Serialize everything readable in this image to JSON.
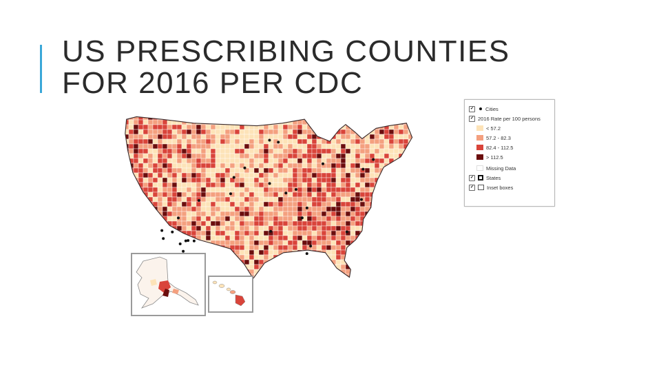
{
  "slide": {
    "title_line1": "US PRESCRIBING COUNTIES",
    "title_line2": "FOR 2016 PER CDC",
    "accent_color": "#3aa7d8"
  },
  "map": {
    "color_scale": [
      "#fde3b8",
      "#f4a07f",
      "#d9443a",
      "#6b0d0d"
    ],
    "insets": [
      "Alaska",
      "Hawaii"
    ]
  },
  "legend": {
    "cities_label": "Cities",
    "rate_label": "2016 Rate per 100 persons",
    "classes": [
      {
        "label": "< 57.2",
        "color": "#fde3b8"
      },
      {
        "label": "57.2 - 82.3",
        "color": "#f4a07f"
      },
      {
        "label": "82.4 - 112.5",
        "color": "#d9443a"
      },
      {
        "label": "> 112.5",
        "color": "#6b0d0d"
      }
    ],
    "missing_label": "Missing Data",
    "states_label": "States",
    "insets_label": "Inset boxes",
    "check_glyph": "✔"
  }
}
